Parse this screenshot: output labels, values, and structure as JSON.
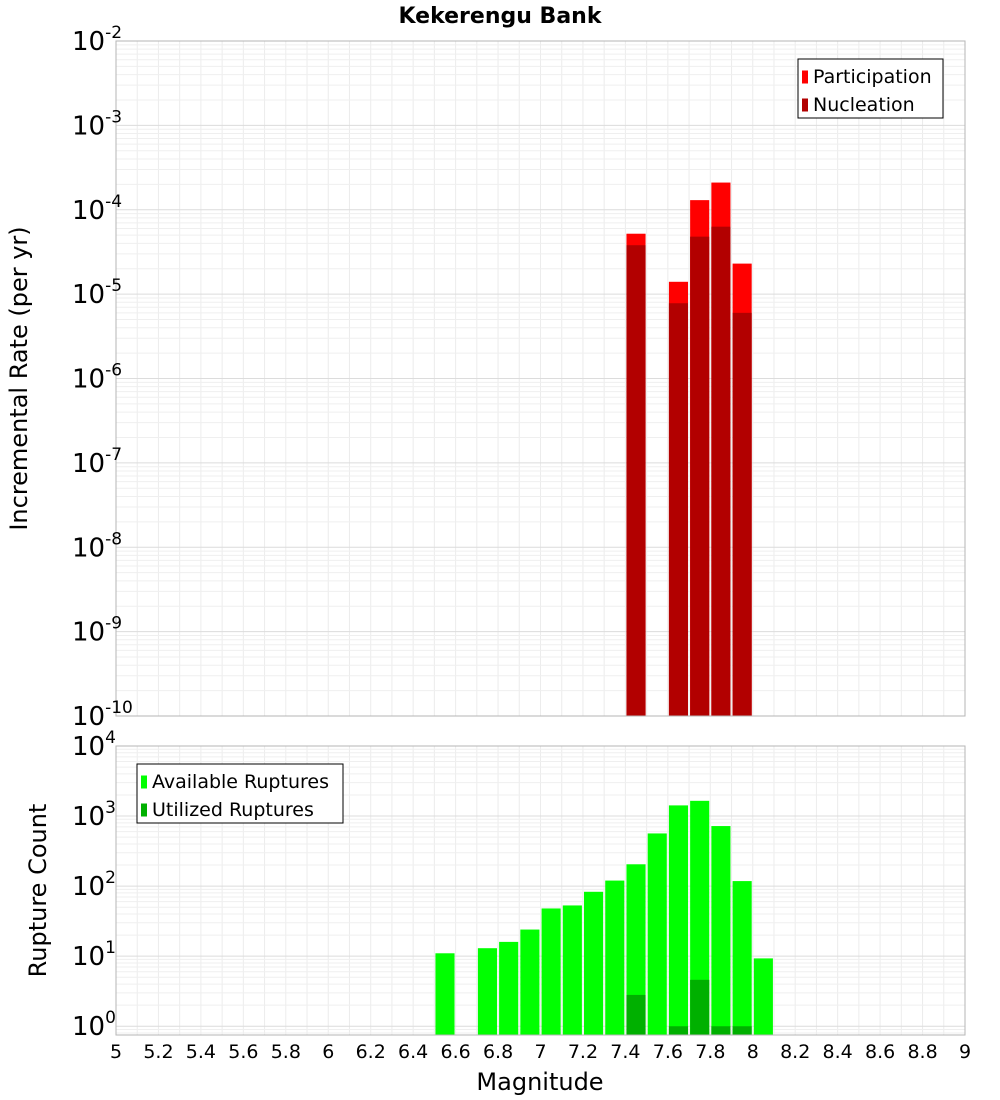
{
  "chart_data": [
    {
      "type": "bar",
      "title": "Kekerengu Bank",
      "ylabel": "Incremental Rate (per yr)",
      "yscale": "log",
      "ylim": [
        1e-10,
        0.01
      ],
      "xlim": [
        5,
        9
      ],
      "bar_width": 0.09,
      "legend_position": "top-right",
      "grid": true,
      "series": [
        {
          "name": "Participation",
          "color": "#ff0000",
          "points": [
            {
              "x": 7.45,
              "y": 5.2e-05
            },
            {
              "x": 7.65,
              "y": 1.4e-05
            },
            {
              "x": 7.75,
              "y": 0.00013
            },
            {
              "x": 7.85,
              "y": 0.00021
            },
            {
              "x": 7.95,
              "y": 2.3e-05
            }
          ]
        },
        {
          "name": "Nucleation",
          "color": "#b20000",
          "points": [
            {
              "x": 7.45,
              "y": 3.8e-05
            },
            {
              "x": 7.65,
              "y": 7.8e-06
            },
            {
              "x": 7.75,
              "y": 4.8e-05
            },
            {
              "x": 7.85,
              "y": 6.3e-05
            },
            {
              "x": 7.95,
              "y": 6e-06
            }
          ]
        }
      ]
    },
    {
      "type": "bar",
      "ylabel": "Rupture Count",
      "xlabel": "Magnitude",
      "yscale": "log",
      "ylim": [
        0.75,
        10000
      ],
      "xlim": [
        5,
        9
      ],
      "bar_width": 0.09,
      "legend_position": "top-left",
      "grid": true,
      "x_ticks": [
        "5",
        "5.2",
        "5.4",
        "5.6",
        "5.8",
        "6",
        "6.2",
        "6.4",
        "6.6",
        "6.8",
        "7",
        "7.2",
        "7.4",
        "7.6",
        "7.8",
        "8",
        "8.2",
        "8.4",
        "8.6",
        "8.8",
        "9"
      ],
      "series": [
        {
          "name": "Available Ruptures",
          "color": "#00ff00",
          "points": [
            {
              "x": 6.55,
              "y": 11
            },
            {
              "x": 6.75,
              "y": 13
            },
            {
              "x": 6.85,
              "y": 16
            },
            {
              "x": 6.95,
              "y": 24
            },
            {
              "x": 7.05,
              "y": 48
            },
            {
              "x": 7.15,
              "y": 53
            },
            {
              "x": 7.25,
              "y": 83
            },
            {
              "x": 7.35,
              "y": 120
            },
            {
              "x": 7.45,
              "y": 205
            },
            {
              "x": 7.55,
              "y": 565
            },
            {
              "x": 7.65,
              "y": 1420
            },
            {
              "x": 7.75,
              "y": 1650
            },
            {
              "x": 7.85,
              "y": 720
            },
            {
              "x": 7.95,
              "y": 118
            },
            {
              "x": 8.05,
              "y": 9.3
            }
          ]
        },
        {
          "name": "Utilized Ruptures",
          "color": "#00b000",
          "points": [
            {
              "x": 7.45,
              "y": 2.8
            },
            {
              "x": 7.65,
              "y": 1
            },
            {
              "x": 7.75,
              "y": 4.6
            },
            {
              "x": 7.85,
              "y": 1
            },
            {
              "x": 7.95,
              "y": 1
            }
          ]
        }
      ]
    }
  ]
}
